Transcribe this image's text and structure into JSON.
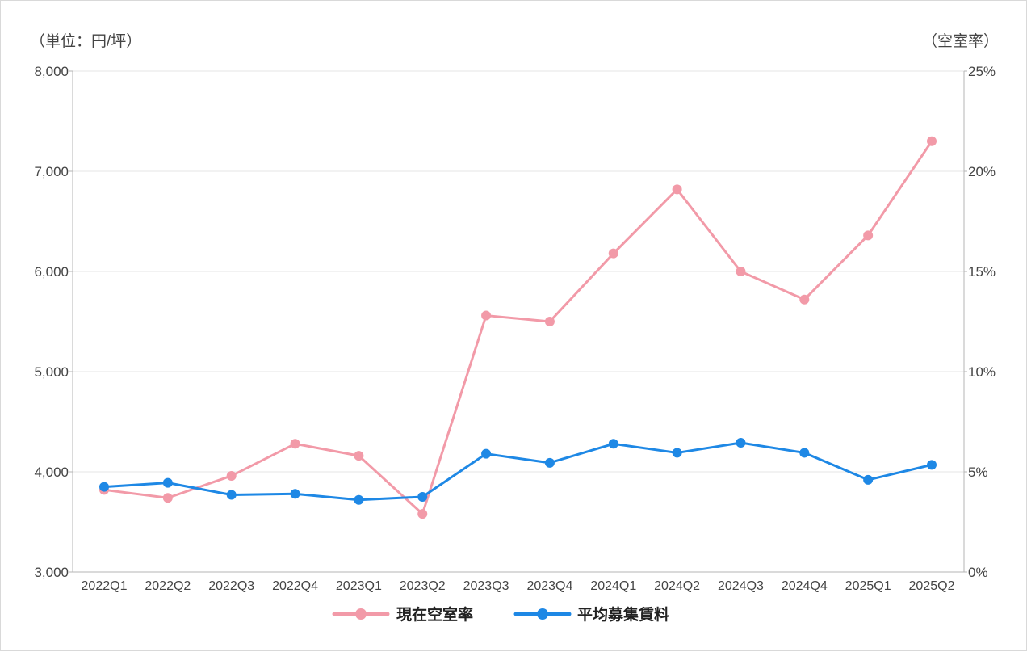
{
  "chart_data": {
    "type": "line",
    "title": "",
    "left_axis_label": "（単位：円/坪）",
    "right_axis_label": "（空室率）",
    "categories": [
      "2022Q1",
      "2022Q2",
      "2022Q3",
      "2022Q4",
      "2023Q1",
      "2023Q2",
      "2023Q3",
      "2023Q4",
      "2024Q1",
      "2024Q2",
      "2024Q3",
      "2024Q4",
      "2025Q1",
      "2025Q2"
    ],
    "y_left": {
      "min": 3000,
      "max": 8000,
      "ticks": [
        3000,
        4000,
        5000,
        6000,
        7000,
        8000
      ],
      "tick_labels": [
        "3,000",
        "4,000",
        "5,000",
        "6,000",
        "7,000",
        "8,000"
      ]
    },
    "y_right": {
      "min": 0,
      "max": 25,
      "ticks": [
        0,
        5,
        10,
        15,
        20,
        25
      ],
      "tick_labels": [
        "0%",
        "5%",
        "10%",
        "15%",
        "20%",
        "25%"
      ]
    },
    "grid": true,
    "legend_position": "bottom",
    "series": [
      {
        "name": "現在空室率",
        "axis": "right",
        "color": "#f29aa8",
        "values": [
          4.1,
          3.7,
          4.8,
          6.4,
          5.8,
          2.9,
          12.8,
          12.5,
          15.9,
          19.1,
          15.0,
          13.6,
          16.8,
          21.5
        ]
      },
      {
        "name": "平均募集賃料",
        "axis": "left",
        "color": "#1e88e5",
        "values": [
          3850,
          3890,
          3770,
          3780,
          3720,
          3750,
          4180,
          4090,
          4280,
          4190,
          4290,
          4190,
          3920,
          4070
        ]
      }
    ]
  }
}
